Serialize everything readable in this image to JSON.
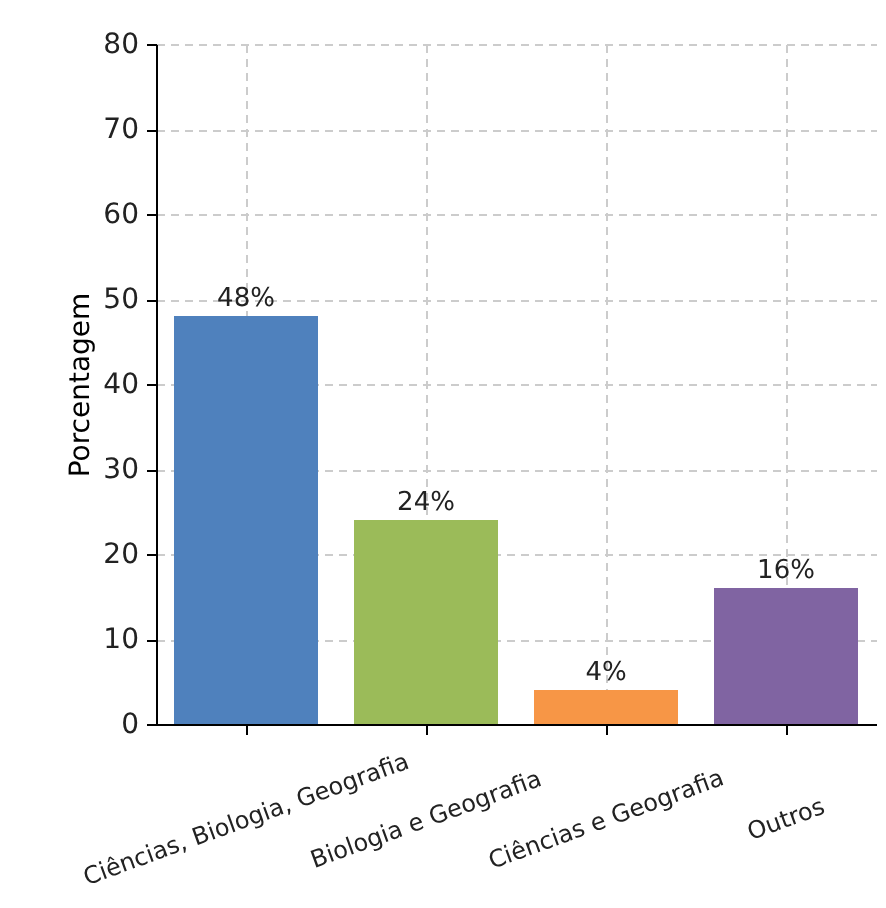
{
  "chart_data": {
    "type": "bar",
    "ylabel": "Porcentagem",
    "categories": [
      "Ciências, Biologia, Geografia",
      "Biologia e Geografia",
      "Ciências e Geografia",
      "Outros"
    ],
    "values": [
      48,
      24,
      4,
      16
    ],
    "colors": [
      "#4f81bd",
      "#9bbb59",
      "#f79646",
      "#8064a2"
    ],
    "value_labels": [
      "48%",
      "24%",
      "4%",
      "16%"
    ],
    "ylim": [
      0,
      80
    ],
    "yticks": [
      0,
      10,
      20,
      30,
      40,
      50,
      60,
      70,
      80
    ],
    "grid": true
  }
}
